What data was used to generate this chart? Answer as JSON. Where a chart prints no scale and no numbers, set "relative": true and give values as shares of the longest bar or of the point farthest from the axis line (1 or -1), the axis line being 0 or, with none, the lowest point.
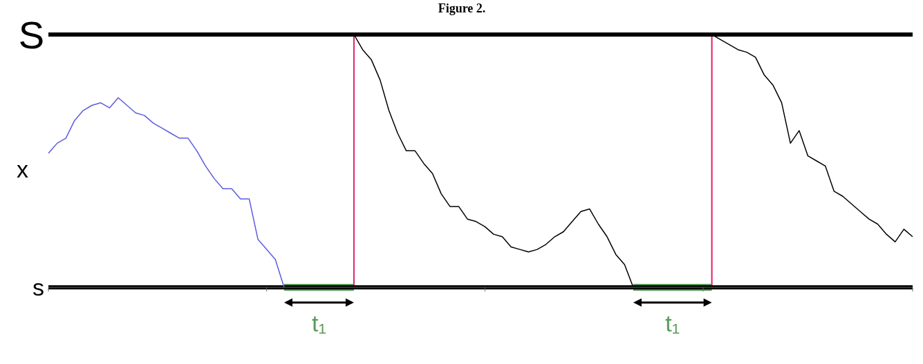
{
  "chart_data": {
    "type": "line",
    "title": "Figure 2.",
    "ylabel": "x",
    "relative": true,
    "categories": [
      null,
      null,
      null,
      null,
      null,
      null,
      null,
      null,
      null,
      null,
      null,
      null,
      null,
      null,
      null,
      null,
      null,
      null,
      null,
      null,
      null,
      null,
      null,
      null,
      null,
      null,
      null,
      null,
      null,
      null,
      null,
      null,
      null,
      null,
      null,
      null,
      null,
      null,
      null,
      null,
      null,
      null,
      null,
      null,
      null,
      null,
      null,
      null,
      null,
      null,
      null,
      null,
      null,
      null,
      null,
      null,
      null,
      null,
      null,
      null,
      null,
      null,
      null,
      null,
      null,
      null,
      null,
      null,
      null,
      null,
      null,
      null,
      null,
      null,
      null,
      null,
      null,
      null,
      null,
      null,
      null,
      null,
      null,
      null,
      null,
      null,
      null,
      null,
      null,
      null,
      null,
      null,
      null,
      null,
      null,
      null,
      null,
      null,
      null,
      null
    ],
    "series": [
      {
        "color": "#5b5be0",
        "values": [
          0.53,
          0.57,
          0.59,
          0.66,
          0.7,
          0.72,
          0.73,
          0.71,
          0.75,
          0.72,
          0.69,
          0.68,
          0.65,
          0.63,
          0.61,
          0.59,
          0.59,
          0.54,
          0.48,
          0.43,
          0.39,
          0.39,
          0.35,
          0.35,
          0.19,
          0.15,
          0.11,
          0,
          null,
          null,
          null,
          null,
          null,
          null,
          null,
          null,
          null,
          null,
          null,
          null,
          null,
          null,
          null,
          null,
          null,
          null,
          null,
          null,
          null,
          null,
          null,
          null,
          null,
          null,
          null,
          null,
          null,
          null,
          null,
          null,
          null,
          null,
          null,
          null,
          null,
          null,
          null,
          null,
          null,
          null,
          null,
          null,
          null,
          null,
          null,
          null,
          null,
          null,
          null,
          null,
          null,
          null,
          null,
          null,
          null,
          null,
          null,
          null,
          null,
          null,
          null,
          null,
          null,
          null,
          null,
          null,
          null,
          null,
          null,
          null
        ]
      },
      {
        "color": "#000000",
        "values": [
          null,
          null,
          null,
          null,
          null,
          null,
          null,
          null,
          null,
          null,
          null,
          null,
          null,
          null,
          null,
          null,
          null,
          null,
          null,
          null,
          null,
          null,
          null,
          null,
          null,
          null,
          null,
          null,
          null,
          null,
          null,
          null,
          null,
          null,
          null,
          1,
          0.94,
          0.9,
          0.82,
          0.7,
          0.61,
          0.54,
          0.54,
          0.49,
          0.45,
          0.37,
          0.32,
          0.32,
          0.27,
          0.26,
          0.24,
          0.21,
          0.2,
          0.16,
          0.15,
          0.14,
          0.15,
          0.17,
          0.2,
          0.22,
          0.26,
          0.3,
          0.31,
          0.25,
          0.2,
          0.13,
          0.09,
          0,
          null,
          null,
          null,
          null,
          null,
          null,
          null,
          null,
          null,
          null,
          null,
          null,
          null,
          null,
          null,
          null,
          null,
          null,
          null,
          null,
          null,
          null,
          null,
          null,
          null,
          null,
          null,
          null,
          null,
          null,
          null,
          null
        ]
      },
      {
        "color": "#000000",
        "values": [
          null,
          null,
          null,
          null,
          null,
          null,
          null,
          null,
          null,
          null,
          null,
          null,
          null,
          null,
          null,
          null,
          null,
          null,
          null,
          null,
          null,
          null,
          null,
          null,
          null,
          null,
          null,
          null,
          null,
          null,
          null,
          null,
          null,
          null,
          null,
          null,
          null,
          null,
          null,
          null,
          null,
          null,
          null,
          null,
          null,
          null,
          null,
          null,
          null,
          null,
          null,
          null,
          null,
          null,
          null,
          null,
          null,
          null,
          null,
          null,
          null,
          null,
          null,
          null,
          null,
          null,
          null,
          null,
          null,
          null,
          null,
          null,
          null,
          null,
          null,
          null,
          1,
          0.98,
          0.96,
          0.94,
          0.93,
          0.91,
          0.84,
          0.8,
          0.73,
          0.57,
          0.62,
          0.52,
          0.5,
          0.48,
          0.38,
          0.36,
          0.33,
          0.3,
          0.27,
          0.25,
          0.21,
          0.18,
          0.23,
          0.2
        ]
      }
    ],
    "ref_lines": [
      {
        "axis": "y",
        "value": 1,
        "label": "S",
        "color": "#000000"
      },
      {
        "axis": "y",
        "value": 0,
        "label": "s",
        "color": "#000000"
      }
    ],
    "annotations": [
      "t₁",
      "t₁"
    ]
  }
}
